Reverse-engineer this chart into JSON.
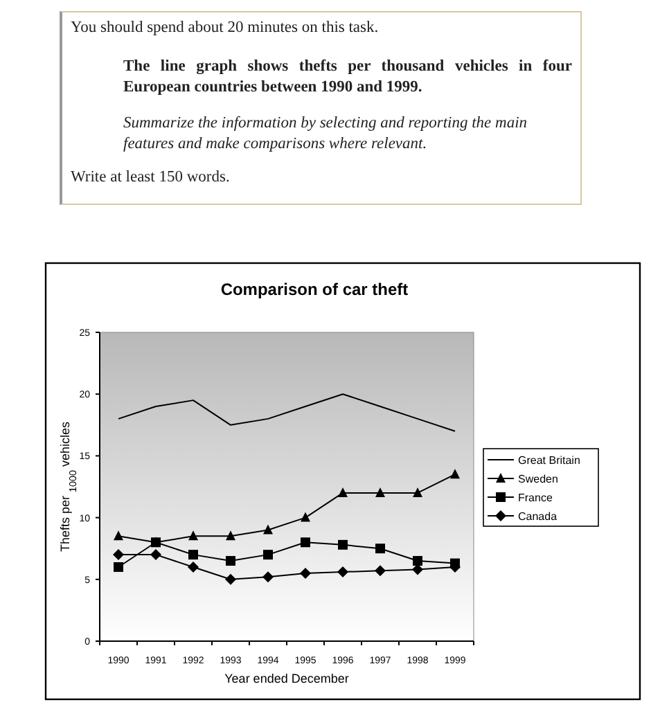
{
  "chart_data": {
    "type": "line",
    "title": "Comparison of car theft",
    "xlabel": "Year ended December",
    "ylabel": "Thefts per $_{1000}$ vehicles",
    "annotations": [
      "You should spend about 20 minutes on this task.",
      "The line graph shows thefts per thousand vehicles in four European countries between 1990 and 1999.",
      "Summarize the information by selecting and reporting the main features and make comparisons where relevant.",
      "Write at least 150 words."
    ],
    "categories": [
      "1990",
      "1991",
      "1992",
      "1993",
      "1994",
      "1995",
      "1996",
      "1997",
      "1998",
      "1999"
    ],
    "series": [
      {
        "name": "Great Britain",
        "color": "#000000",
        "marker": "none",
        "values": [
          18,
          19,
          19.5,
          17.5,
          18,
          19,
          20,
          19,
          18,
          17
        ]
      },
      {
        "name": "Sweden",
        "color": "#000000",
        "marker": "triangle",
        "values": [
          8.5,
          8,
          8.5,
          8.5,
          9,
          10,
          12,
          12,
          12,
          13.5
        ]
      },
      {
        "name": "France",
        "color": "#000000",
        "marker": "square",
        "values": [
          6,
          8,
          7,
          6.5,
          7,
          8,
          7.8,
          7.5,
          6.5,
          6.3
        ]
      },
      {
        "name": "Canada",
        "color": "#000000",
        "marker": "diamond",
        "values": [
          7,
          7,
          6,
          5,
          5.2,
          5.5,
          5.6,
          5.7,
          5.8,
          6
        ]
      }
    ],
    "ylim": [
      0,
      25
    ],
    "yticks": [
      0,
      5,
      10,
      15,
      20,
      25
    ],
    "grid": false,
    "legend": "right",
    "line_style": "solid"
  }
}
